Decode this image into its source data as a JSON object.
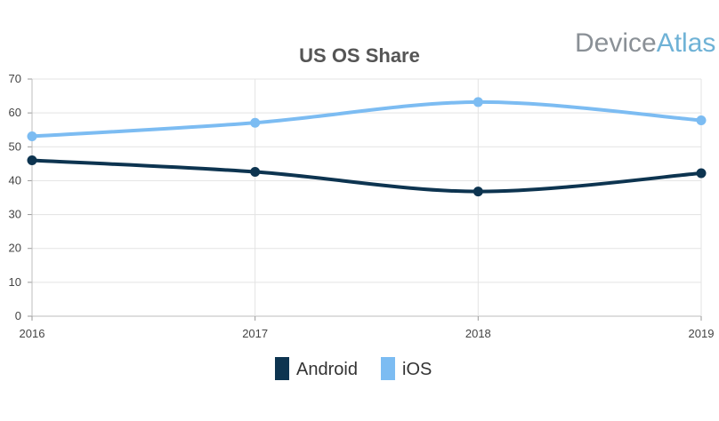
{
  "brand": {
    "part1": "Device",
    "part2": "Atlas"
  },
  "chart_data": {
    "type": "line",
    "title": "US OS Share",
    "xlabel": "",
    "ylabel": "",
    "categories": [
      "2016",
      "2017",
      "2018",
      "2019"
    ],
    "ylim": [
      0,
      70
    ],
    "yticks": [
      0,
      10,
      20,
      30,
      40,
      50,
      60,
      70
    ],
    "grid": true,
    "legend_position": "bottom",
    "series": [
      {
        "name": "Android",
        "values": [
          46,
          42.6,
          36.8,
          42.2
        ],
        "color": "#0d3450"
      },
      {
        "name": "iOS",
        "values": [
          53.1,
          57.1,
          63.2,
          57.8
        ],
        "color": "#7cbcf2"
      }
    ]
  }
}
